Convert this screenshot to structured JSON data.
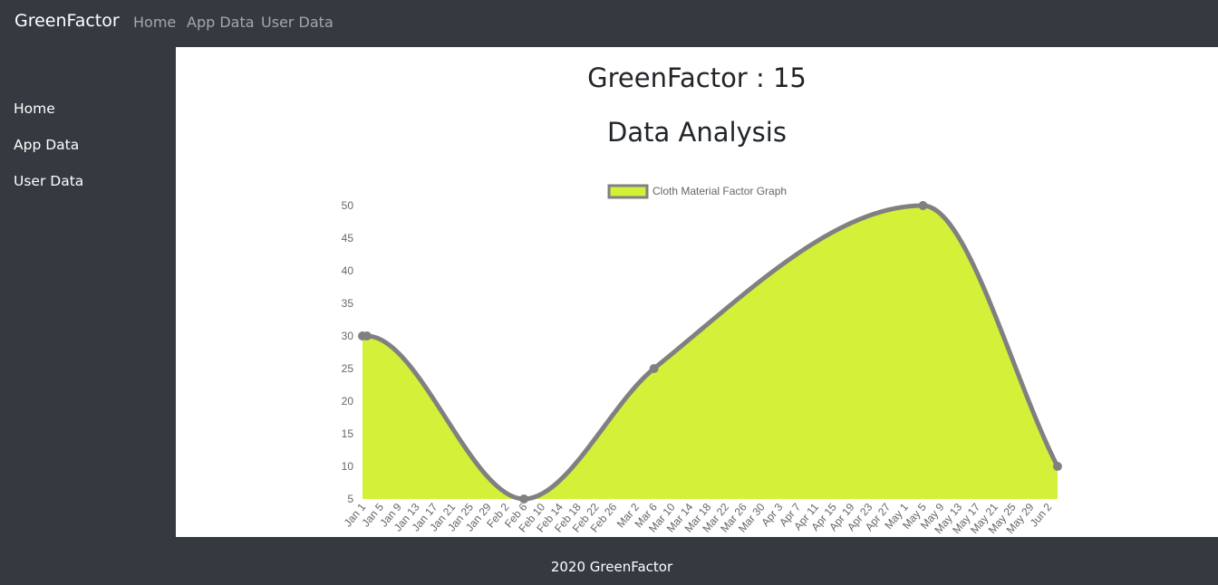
{
  "navbar": {
    "brand": "GreenFactor",
    "links": [
      {
        "label": "Home"
      },
      {
        "label": "App Data"
      },
      {
        "label": "User Data"
      }
    ]
  },
  "sidebar": {
    "items": [
      {
        "label": "Home"
      },
      {
        "label": "App Data"
      },
      {
        "label": "User Data"
      }
    ]
  },
  "main": {
    "score_heading": "GreenFactor : 15",
    "title": "Data Analysis"
  },
  "chart_data": {
    "type": "area",
    "legend": {
      "label": "Cloth Material Factor Graph",
      "position": "top-center"
    },
    "fill_color": "#d4f038",
    "line_color": "#808080",
    "yticks": [
      5,
      10,
      15,
      20,
      25,
      30,
      35,
      40,
      45,
      50
    ],
    "ylim": [
      5,
      50
    ],
    "categories": [
      "Jan 1",
      "Jan 5",
      "Jan 9",
      "Jan 13",
      "Jan 17",
      "Jan 21",
      "Jan 25",
      "Jan 29",
      "Feb 2",
      "Feb 6",
      "Feb 10",
      "Feb 14",
      "Feb 18",
      "Feb 22",
      "Feb 26",
      "Mar 2",
      "Mar 6",
      "Mar 10",
      "Mar 14",
      "Mar 18",
      "Mar 22",
      "Mar 26",
      "Mar 30",
      "Apr 3",
      "Apr 7",
      "Apr 11",
      "Apr 15",
      "Apr 19",
      "Apr 23",
      "Apr 27",
      "May 1",
      "May 5",
      "May 9",
      "May 13",
      "May 17",
      "May 21",
      "May 25",
      "May 29",
      "Jun 2"
    ],
    "series": [
      {
        "name": "Cloth Material Factor Graph",
        "points": [
          {
            "x": "Jan 1",
            "y": 30
          },
          {
            "x": "Jan 2",
            "y": 30
          },
          {
            "x": "Feb 6",
            "y": 5
          },
          {
            "x": "Mar 6",
            "y": 25
          },
          {
            "x": "May 5",
            "y": 50
          },
          {
            "x": "Jun 4",
            "y": 10
          }
        ]
      }
    ]
  },
  "footer": {
    "text": "2020 GreenFactor"
  }
}
